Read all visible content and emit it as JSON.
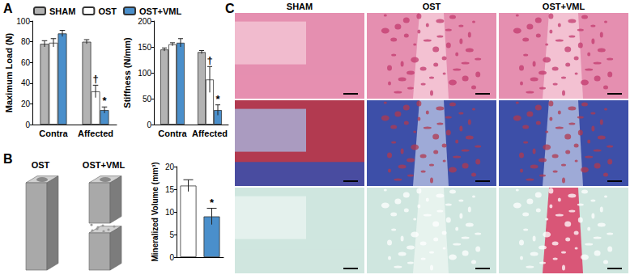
{
  "chart_data": [
    {
      "type": "bar",
      "categories": [
        "Contra",
        "Affected"
      ],
      "ylabel": "Maximum Load (N)",
      "ylim": [
        0,
        100
      ],
      "yticks": [
        0,
        20,
        40,
        60,
        80,
        100
      ],
      "legend": "top",
      "series": [
        {
          "name": "SHAM",
          "color": "#b3b3b3",
          "values": [
            78,
            80
          ],
          "errors": [
            3,
            2
          ]
        },
        {
          "name": "OST",
          "color": "#ffffff",
          "values": [
            79,
            32
          ],
          "errors": [
            4,
            6
          ]
        },
        {
          "name": "OST+VML",
          "color": "#4a8fcb",
          "values": [
            88,
            14
          ],
          "errors": [
            3,
            3
          ]
        }
      ],
      "annotations": [
        {
          "text": "†",
          "series": "OST",
          "category": "Affected"
        },
        {
          "text": "*",
          "series": "OST+VML",
          "category": "Affected"
        }
      ]
    },
    {
      "type": "bar",
      "categories": [
        "Contra",
        "Affected"
      ],
      "ylabel": "Stiffness (N/mm)",
      "ylim": [
        0,
        200
      ],
      "yticks": [
        0,
        50,
        100,
        150,
        200
      ],
      "series": [
        {
          "name": "SHAM",
          "color": "#b3b3b3",
          "values": [
            145,
            140
          ],
          "errors": [
            3,
            3
          ]
        },
        {
          "name": "OST",
          "color": "#ffffff",
          "values": [
            155,
            87
          ],
          "errors": [
            3,
            25
          ]
        },
        {
          "name": "OST+VML",
          "color": "#4a8fcb",
          "values": [
            158,
            28
          ],
          "errors": [
            8,
            10
          ]
        }
      ],
      "annotations": [
        {
          "text": "†",
          "series": "OST",
          "category": "Affected"
        },
        {
          "text": "*",
          "series": "OST+VML",
          "category": "Affected"
        }
      ]
    },
    {
      "type": "bar",
      "categories": [
        null,
        null
      ],
      "ylabel": "Mineralized Volume (mm³)",
      "ylim": [
        0,
        20
      ],
      "yticks": [
        0,
        5,
        10,
        15,
        20
      ],
      "values": [
        15.8,
        9.0
      ],
      "errors": [
        1.3,
        1.8
      ],
      "colors": [
        "#ffffff",
        "#4a8fcb"
      ],
      "annotations": [
        {
          "text": "*",
          "index": 1
        }
      ]
    }
  ],
  "figure": {
    "panels": [
      "A",
      "B",
      "C"
    ],
    "renderings": [
      "OST",
      "OST+VML"
    ],
    "histology_columns": [
      "SHAM",
      "OST",
      "OST+VML"
    ]
  }
}
